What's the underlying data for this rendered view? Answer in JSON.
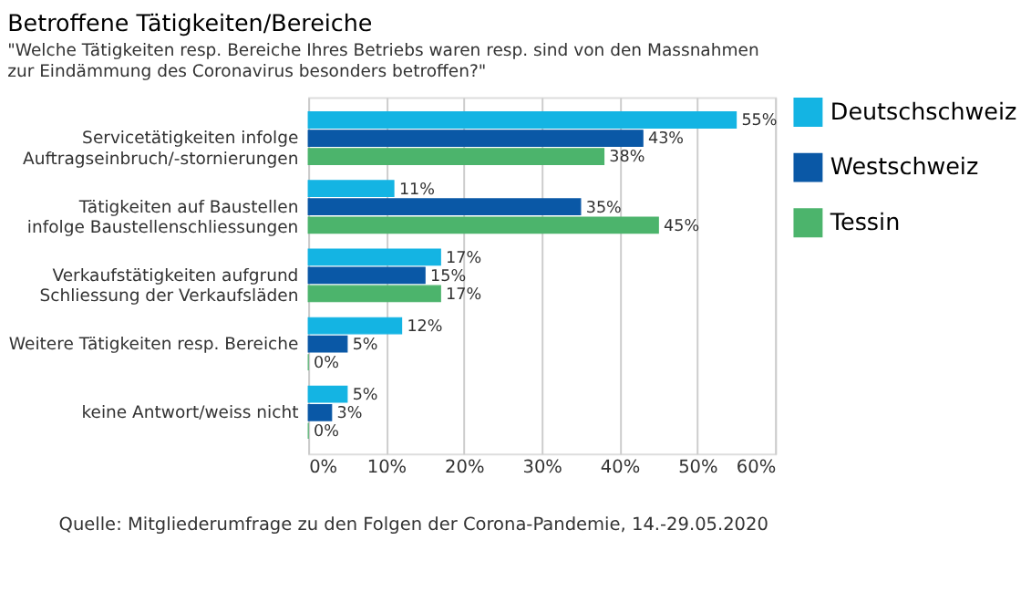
{
  "chart_data": {
    "type": "bar",
    "orientation": "horizontal",
    "title": "Betroffene Tätigkeiten/Bereiche",
    "subtitle": "\"Welche Tätigkeiten resp. Bereiche Ihres Betriebs waren resp. sind von den Massnahmen\nzur Eindämmung des Coronavirus besonders betroffen?\"",
    "categories": [
      "Servicetätigkeiten infolge\nAuftragseinbruch/-stornierungen",
      "Tätigkeiten auf Baustellen\ninfolge Baustellenschliessungen",
      "Verkaufstätigkeiten aufgrund\nSchliessung der Verkaufsläden",
      "Weitere Tätigkeiten resp. Bereiche",
      "keine Antwort/weiss nicht"
    ],
    "series": [
      {
        "name": "Deutschschweiz",
        "color": "#14b4e3",
        "values": [
          55,
          11,
          17,
          12,
          5
        ],
        "value_labels": [
          "55%",
          "11%",
          "17%",
          "12%",
          "5%"
        ]
      },
      {
        "name": "Westschweiz",
        "color": "#0a58a6",
        "values": [
          43,
          35,
          15,
          5,
          3
        ],
        "value_labels": [
          "43%",
          "35%",
          "15%",
          "5%",
          "3%"
        ]
      },
      {
        "name": "Tessin",
        "color": "#4cb46c",
        "values": [
          38,
          45,
          17,
          0,
          0
        ],
        "value_labels": [
          "38%",
          "45%",
          "17%",
          "0%",
          "0%"
        ]
      }
    ],
    "xlim": [
      0,
      60
    ],
    "xticks": [
      {
        "value": 0,
        "label": "0%"
      },
      {
        "value": 10,
        "label": "10%"
      },
      {
        "value": 20,
        "label": "20%"
      },
      {
        "value": 30,
        "label": "30%"
      },
      {
        "value": 40,
        "label": "40%"
      },
      {
        "value": 50,
        "label": "50%"
      },
      {
        "value": 60,
        "label": "60%"
      }
    ],
    "grid": "x",
    "legend": "right",
    "annotations": [
      "Quelle: Mitgliederumfrage zu den Folgen der Corona-Pandemie, 14.-29.05.2020"
    ]
  }
}
